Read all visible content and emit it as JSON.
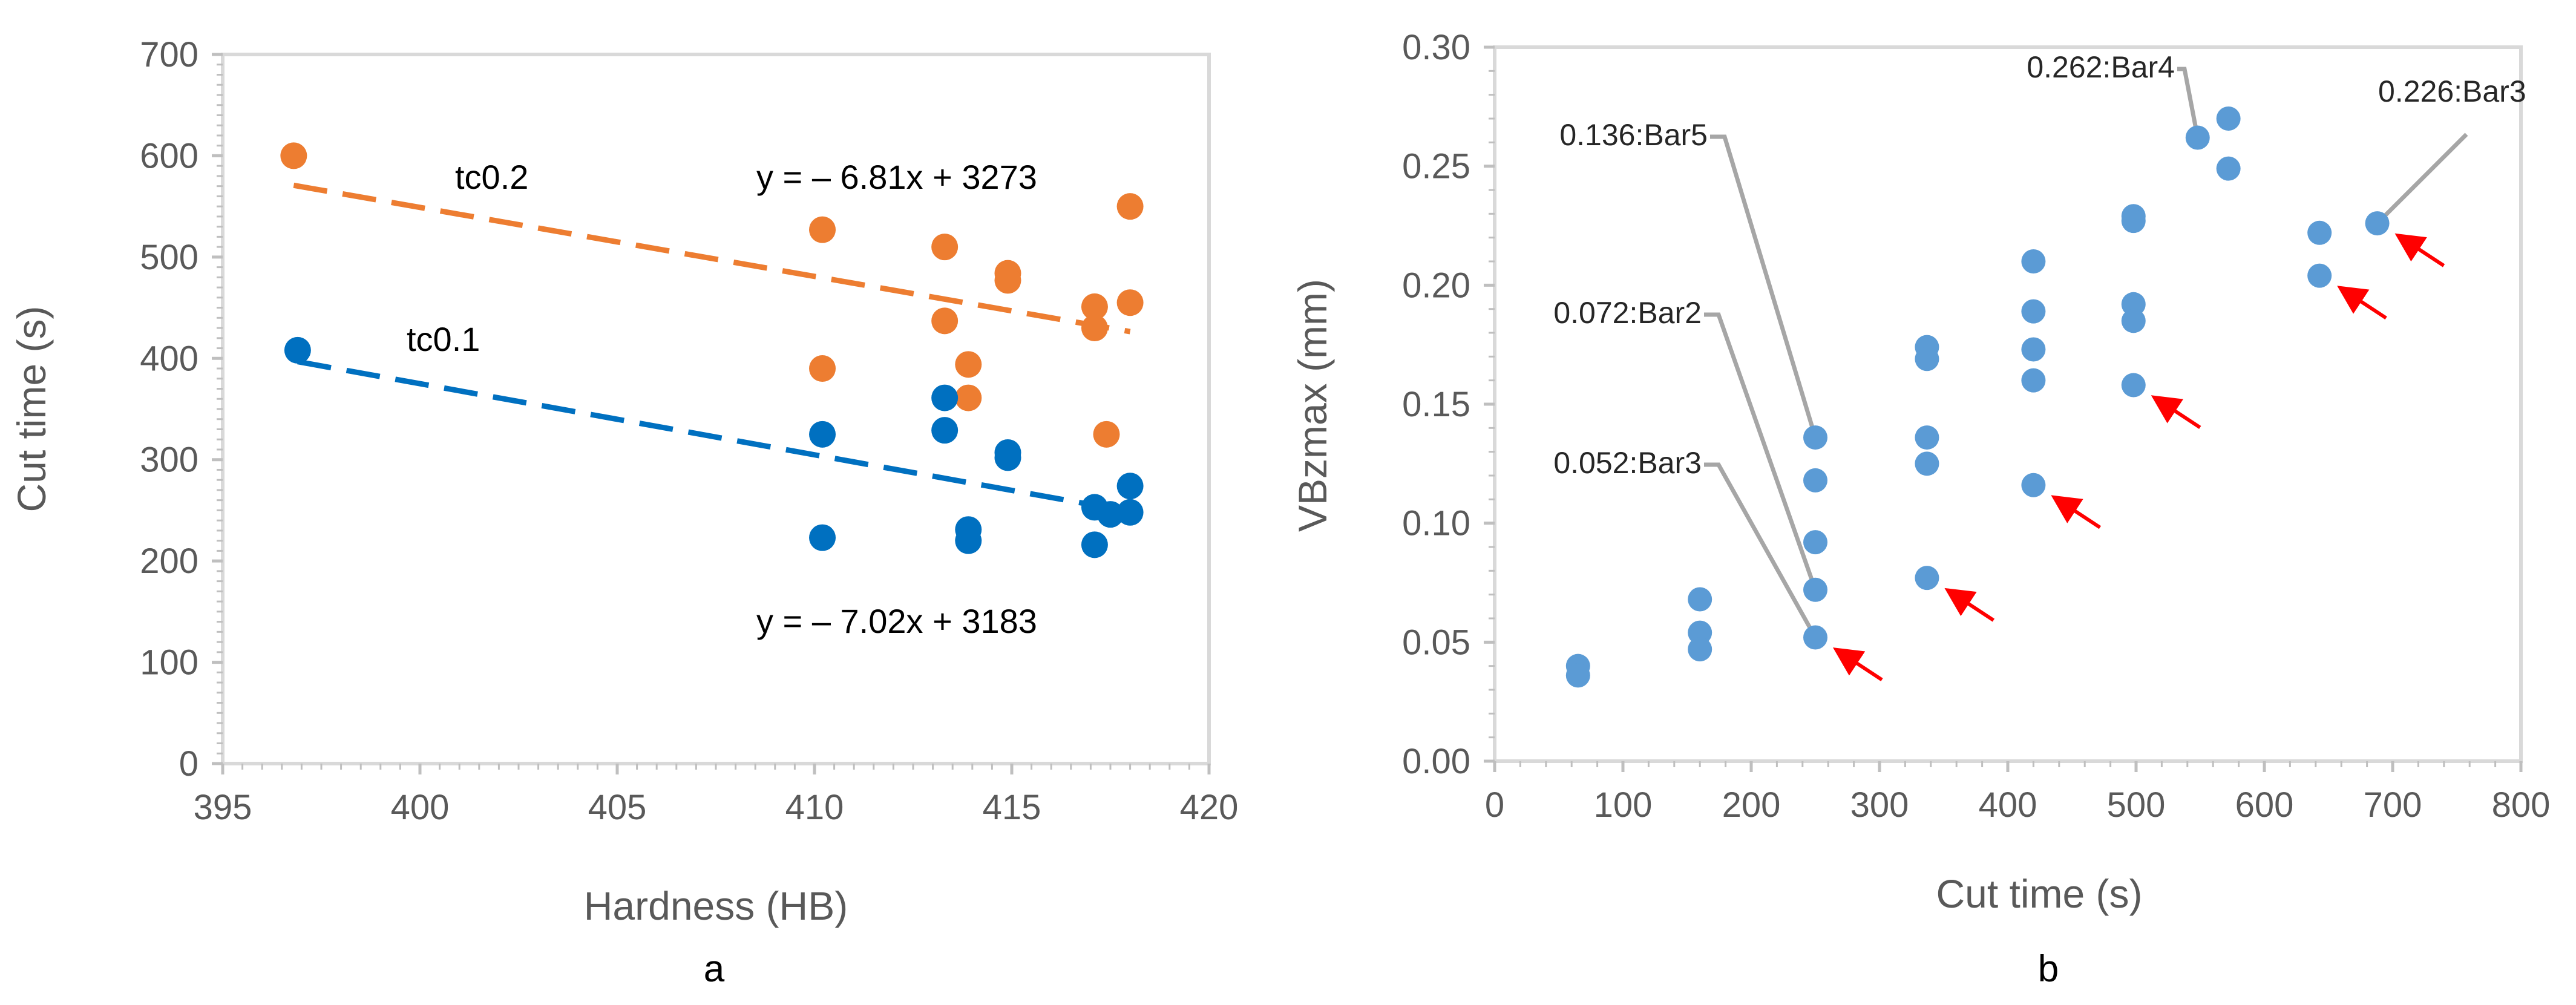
{
  "chart_data": [
    {
      "type": "scatter",
      "panel_label": "a",
      "title": "",
      "xlabel": "Hardness (HB)",
      "ylabel": "Cut time (s)",
      "xlim": [
        395,
        420
      ],
      "ylim": [
        0,
        700
      ],
      "xticks": [
        395,
        400,
        405,
        410,
        415,
        420
      ],
      "xtick_labels": [
        "395",
        "400",
        "405",
        "410",
        "415",
        "420"
      ],
      "yticks": [
        0,
        100,
        200,
        300,
        400,
        500,
        600,
        700
      ],
      "ytick_labels": [
        "0",
        "100",
        "200",
        "300",
        "400",
        "500",
        "600",
        "700"
      ],
      "grid": false,
      "series": [
        {
          "name": "tc0.2",
          "label": "tc0.2",
          "color": "#ED7D31",
          "points": [
            [
              396.8,
              600
            ],
            [
              410.2,
              527
            ],
            [
              410.2,
              390
            ],
            [
              413.3,
              510
            ],
            [
              413.3,
              437
            ],
            [
              413.9,
              394
            ],
            [
              413.9,
              361
            ],
            [
              414.9,
              484
            ],
            [
              414.9,
              477
            ],
            [
              417.1,
              451
            ],
            [
              417.1,
              430
            ],
            [
              417.4,
              325
            ],
            [
              418.0,
              550
            ],
            [
              418.0,
              455
            ]
          ],
          "trendline": {
            "slope": -6.81,
            "intercept": 3273,
            "x_range": [
              396.8,
              418.0
            ],
            "equation": "y = – 6.81x + 3273"
          }
        },
        {
          "name": "tc0.1",
          "label": "tc0.1",
          "color": "#0070C0",
          "points": [
            [
              396.9,
              408
            ],
            [
              410.2,
              325
            ],
            [
              410.2,
              223
            ],
            [
              413.3,
              361
            ],
            [
              413.3,
              329
            ],
            [
              413.9,
              231
            ],
            [
              413.9,
              220
            ],
            [
              414.9,
              307
            ],
            [
              414.9,
              302
            ],
            [
              417.1,
              253
            ],
            [
              417.1,
              216
            ],
            [
              417.5,
              246
            ],
            [
              418.0,
              274
            ],
            [
              418.0,
              248
            ]
          ],
          "trendline": {
            "slope": -7.02,
            "intercept": 3183,
            "x_range": [
              396.9,
              418.0
            ],
            "equation": "y = – 7.02x + 3183"
          }
        }
      ]
    },
    {
      "type": "scatter",
      "panel_label": "b",
      "title": "",
      "xlabel": "Cut time (s)",
      "ylabel": "VBzmax (mm)",
      "xlim": [
        0,
        800
      ],
      "ylim": [
        0,
        0.3
      ],
      "xticks": [
        0,
        100,
        200,
        300,
        400,
        500,
        600,
        700,
        800
      ],
      "xtick_labels": [
        "0",
        "100",
        "200",
        "300",
        "400",
        "500",
        "600",
        "700",
        "800"
      ],
      "yticks": [
        0,
        0.05,
        0.1,
        0.15,
        0.2,
        0.25,
        0.3
      ],
      "ytick_labels": [
        "0.00",
        "0.05",
        "0.10",
        "0.15",
        "0.20",
        "0.25",
        "0.30"
      ],
      "grid": false,
      "series": [
        {
          "name": "VBzmax",
          "color": "#5B9BD5",
          "points": [
            [
              65,
              0.04
            ],
            [
              65,
              0.036
            ],
            [
              160,
              0.068
            ],
            [
              160,
              0.054
            ],
            [
              160,
              0.047
            ],
            [
              250,
              0.136
            ],
            [
              250,
              0.118
            ],
            [
              250,
              0.092
            ],
            [
              250,
              0.072
            ],
            [
              250,
              0.052
            ],
            [
              337,
              0.174
            ],
            [
              337,
              0.169
            ],
            [
              337,
              0.136
            ],
            [
              337,
              0.125
            ],
            [
              337,
              0.077
            ],
            [
              420,
              0.21
            ],
            [
              420,
              0.189
            ],
            [
              420,
              0.173
            ],
            [
              420,
              0.16
            ],
            [
              420,
              0.116
            ],
            [
              498,
              0.229
            ],
            [
              498,
              0.227
            ],
            [
              498,
              0.192
            ],
            [
              498,
              0.185
            ],
            [
              498,
              0.158
            ],
            [
              548,
              0.262
            ],
            [
              572,
              0.27
            ],
            [
              572,
              0.249
            ],
            [
              643,
              0.222
            ],
            [
              643,
              0.204
            ],
            [
              688,
              0.226
            ]
          ]
        }
      ],
      "callouts": [
        {
          "text": "0.136:Bar5",
          "x": 250,
          "y": 0.136
        },
        {
          "text": "0.072:Bar2",
          "x": 250,
          "y": 0.072
        },
        {
          "text": "0.052:Bar3",
          "x": 250,
          "y": 0.052
        },
        {
          "text": "0.262:Bar4",
          "x": 548,
          "y": 0.262
        },
        {
          "text": "0.226:Bar3",
          "x": 688,
          "y": 0.226
        }
      ],
      "arrows": [
        {
          "x": 250,
          "y": 0.052
        },
        {
          "x": 337,
          "y": 0.077
        },
        {
          "x": 420,
          "y": 0.116
        },
        {
          "x": 498,
          "y": 0.158
        },
        {
          "x": 643,
          "y": 0.204
        },
        {
          "x": 688,
          "y": 0.226
        }
      ],
      "arrow_color": "#FF0000"
    }
  ]
}
